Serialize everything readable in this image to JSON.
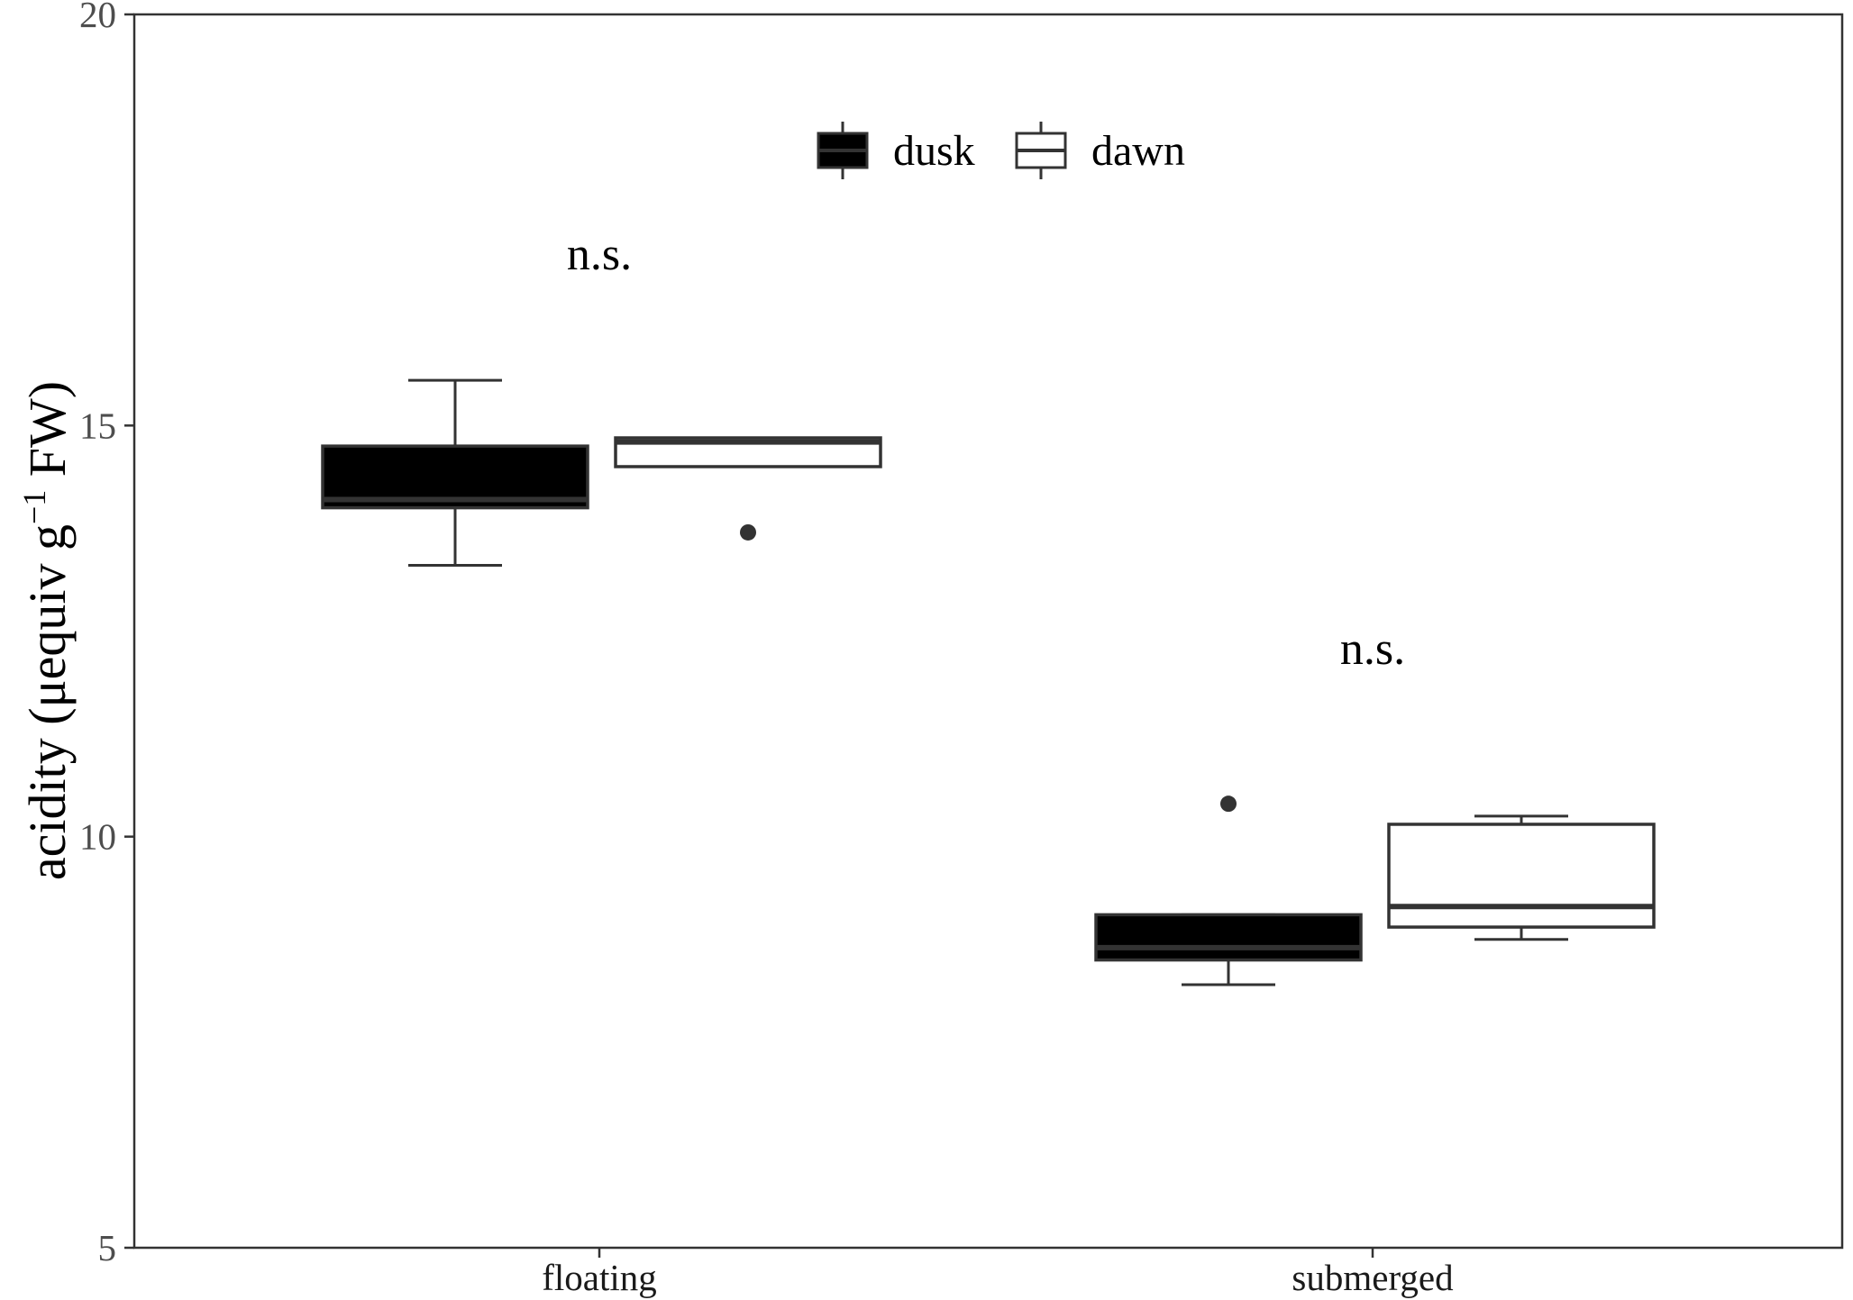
{
  "chart_data": {
    "type": "box",
    "title": "",
    "xlabel": "",
    "ylabel": "acidity (μequiv g",
    "ylabel_sup": "−1",
    "ylabel_tail": " FW)",
    "ylim": [
      5,
      20
    ],
    "yticks": [
      5,
      10,
      15,
      20
    ],
    "categories": [
      "floating",
      "submerged"
    ],
    "legend": {
      "placement": "top-center",
      "items": [
        "dusk",
        "dawn"
      ]
    },
    "series": [
      {
        "name": "dusk",
        "fill": "#000000",
        "stroke": "#333333",
        "boxes": [
          {
            "category": "floating",
            "whisker_low": 13.3,
            "q1": 14.0,
            "median": 14.1,
            "q3": 14.75,
            "whisker_high": 15.55,
            "outliers": []
          },
          {
            "category": "submerged",
            "whisker_low": 8.2,
            "q1": 8.5,
            "median": 8.65,
            "q3": 9.05,
            "whisker_high": 9.05,
            "outliers": [
              10.4
            ]
          }
        ]
      },
      {
        "name": "dawn",
        "fill": "#ffffff",
        "stroke": "#333333",
        "boxes": [
          {
            "category": "floating",
            "whisker_low": 14.5,
            "q1": 14.5,
            "median": 14.8,
            "q3": 14.85,
            "whisker_high": 14.85,
            "outliers": [
              13.7
            ]
          },
          {
            "category": "submerged",
            "whisker_low": 8.75,
            "q1": 8.9,
            "median": 9.15,
            "q3": 10.15,
            "whisker_high": 10.25,
            "outliers": []
          }
        ]
      }
    ],
    "annotations": [
      {
        "category": "floating",
        "text": "n.s.",
        "y": 16.9
      },
      {
        "category": "submerged",
        "text": "n.s.",
        "y": 12.1
      }
    ],
    "grid": false
  }
}
